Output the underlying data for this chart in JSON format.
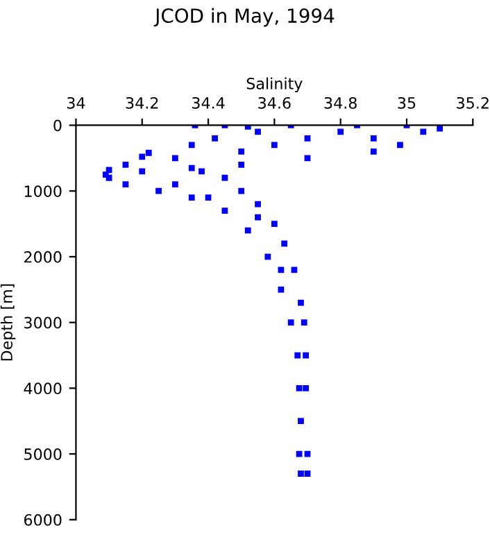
{
  "chart_data": {
    "type": "scatter",
    "title": "JCOD in May, 1994",
    "xlabel": "Salinity",
    "ylabel": "Depth [m]",
    "xlim": [
      34,
      35.2
    ],
    "xticks": [
      34,
      34.2,
      34.4,
      34.6,
      34.8,
      35,
      35.2
    ],
    "ylim": [
      6000,
      0
    ],
    "yticks": [
      0,
      1000,
      2000,
      3000,
      4000,
      5000,
      6000
    ],
    "grid": false,
    "marker": "square",
    "series": [
      {
        "color": "#0000ff",
        "x": [
          34.36,
          34.45,
          34.52,
          34.65,
          34.85,
          35.0,
          34.55,
          34.42,
          34.35,
          34.22,
          34.2,
          34.15,
          34.1,
          34.09,
          34.1,
          34.15,
          34.25,
          34.35,
          34.45,
          34.52,
          34.58,
          34.62,
          34.65,
          34.67,
          34.675,
          34.675,
          34.68,
          35.1,
          35.05,
          34.98,
          34.9,
          34.7,
          34.5,
          34.35,
          34.38,
          34.45,
          34.5,
          34.55,
          34.6,
          34.63,
          34.66,
          34.68,
          34.69,
          34.695,
          34.695,
          34.7,
          34.7,
          34.8,
          34.7,
          34.6,
          34.5,
          34.3,
          34.2,
          34.3,
          34.4,
          34.55,
          34.62,
          34.68,
          34.9
        ],
        "values": [
          0,
          0,
          20,
          0,
          0,
          0,
          100,
          200,
          300,
          420,
          480,
          600,
          680,
          750,
          800,
          900,
          1000,
          1100,
          1300,
          1600,
          2000,
          2500,
          3000,
          3500,
          4000,
          5000,
          5300,
          50,
          100,
          300,
          400,
          500,
          600,
          650,
          700,
          800,
          1000,
          1200,
          1500,
          1800,
          2200,
          2700,
          3000,
          3500,
          4000,
          5000,
          5300,
          100,
          200,
          300,
          400,
          500,
          700,
          900,
          1100,
          1400,
          2200,
          4500,
          200
        ]
      }
    ]
  }
}
